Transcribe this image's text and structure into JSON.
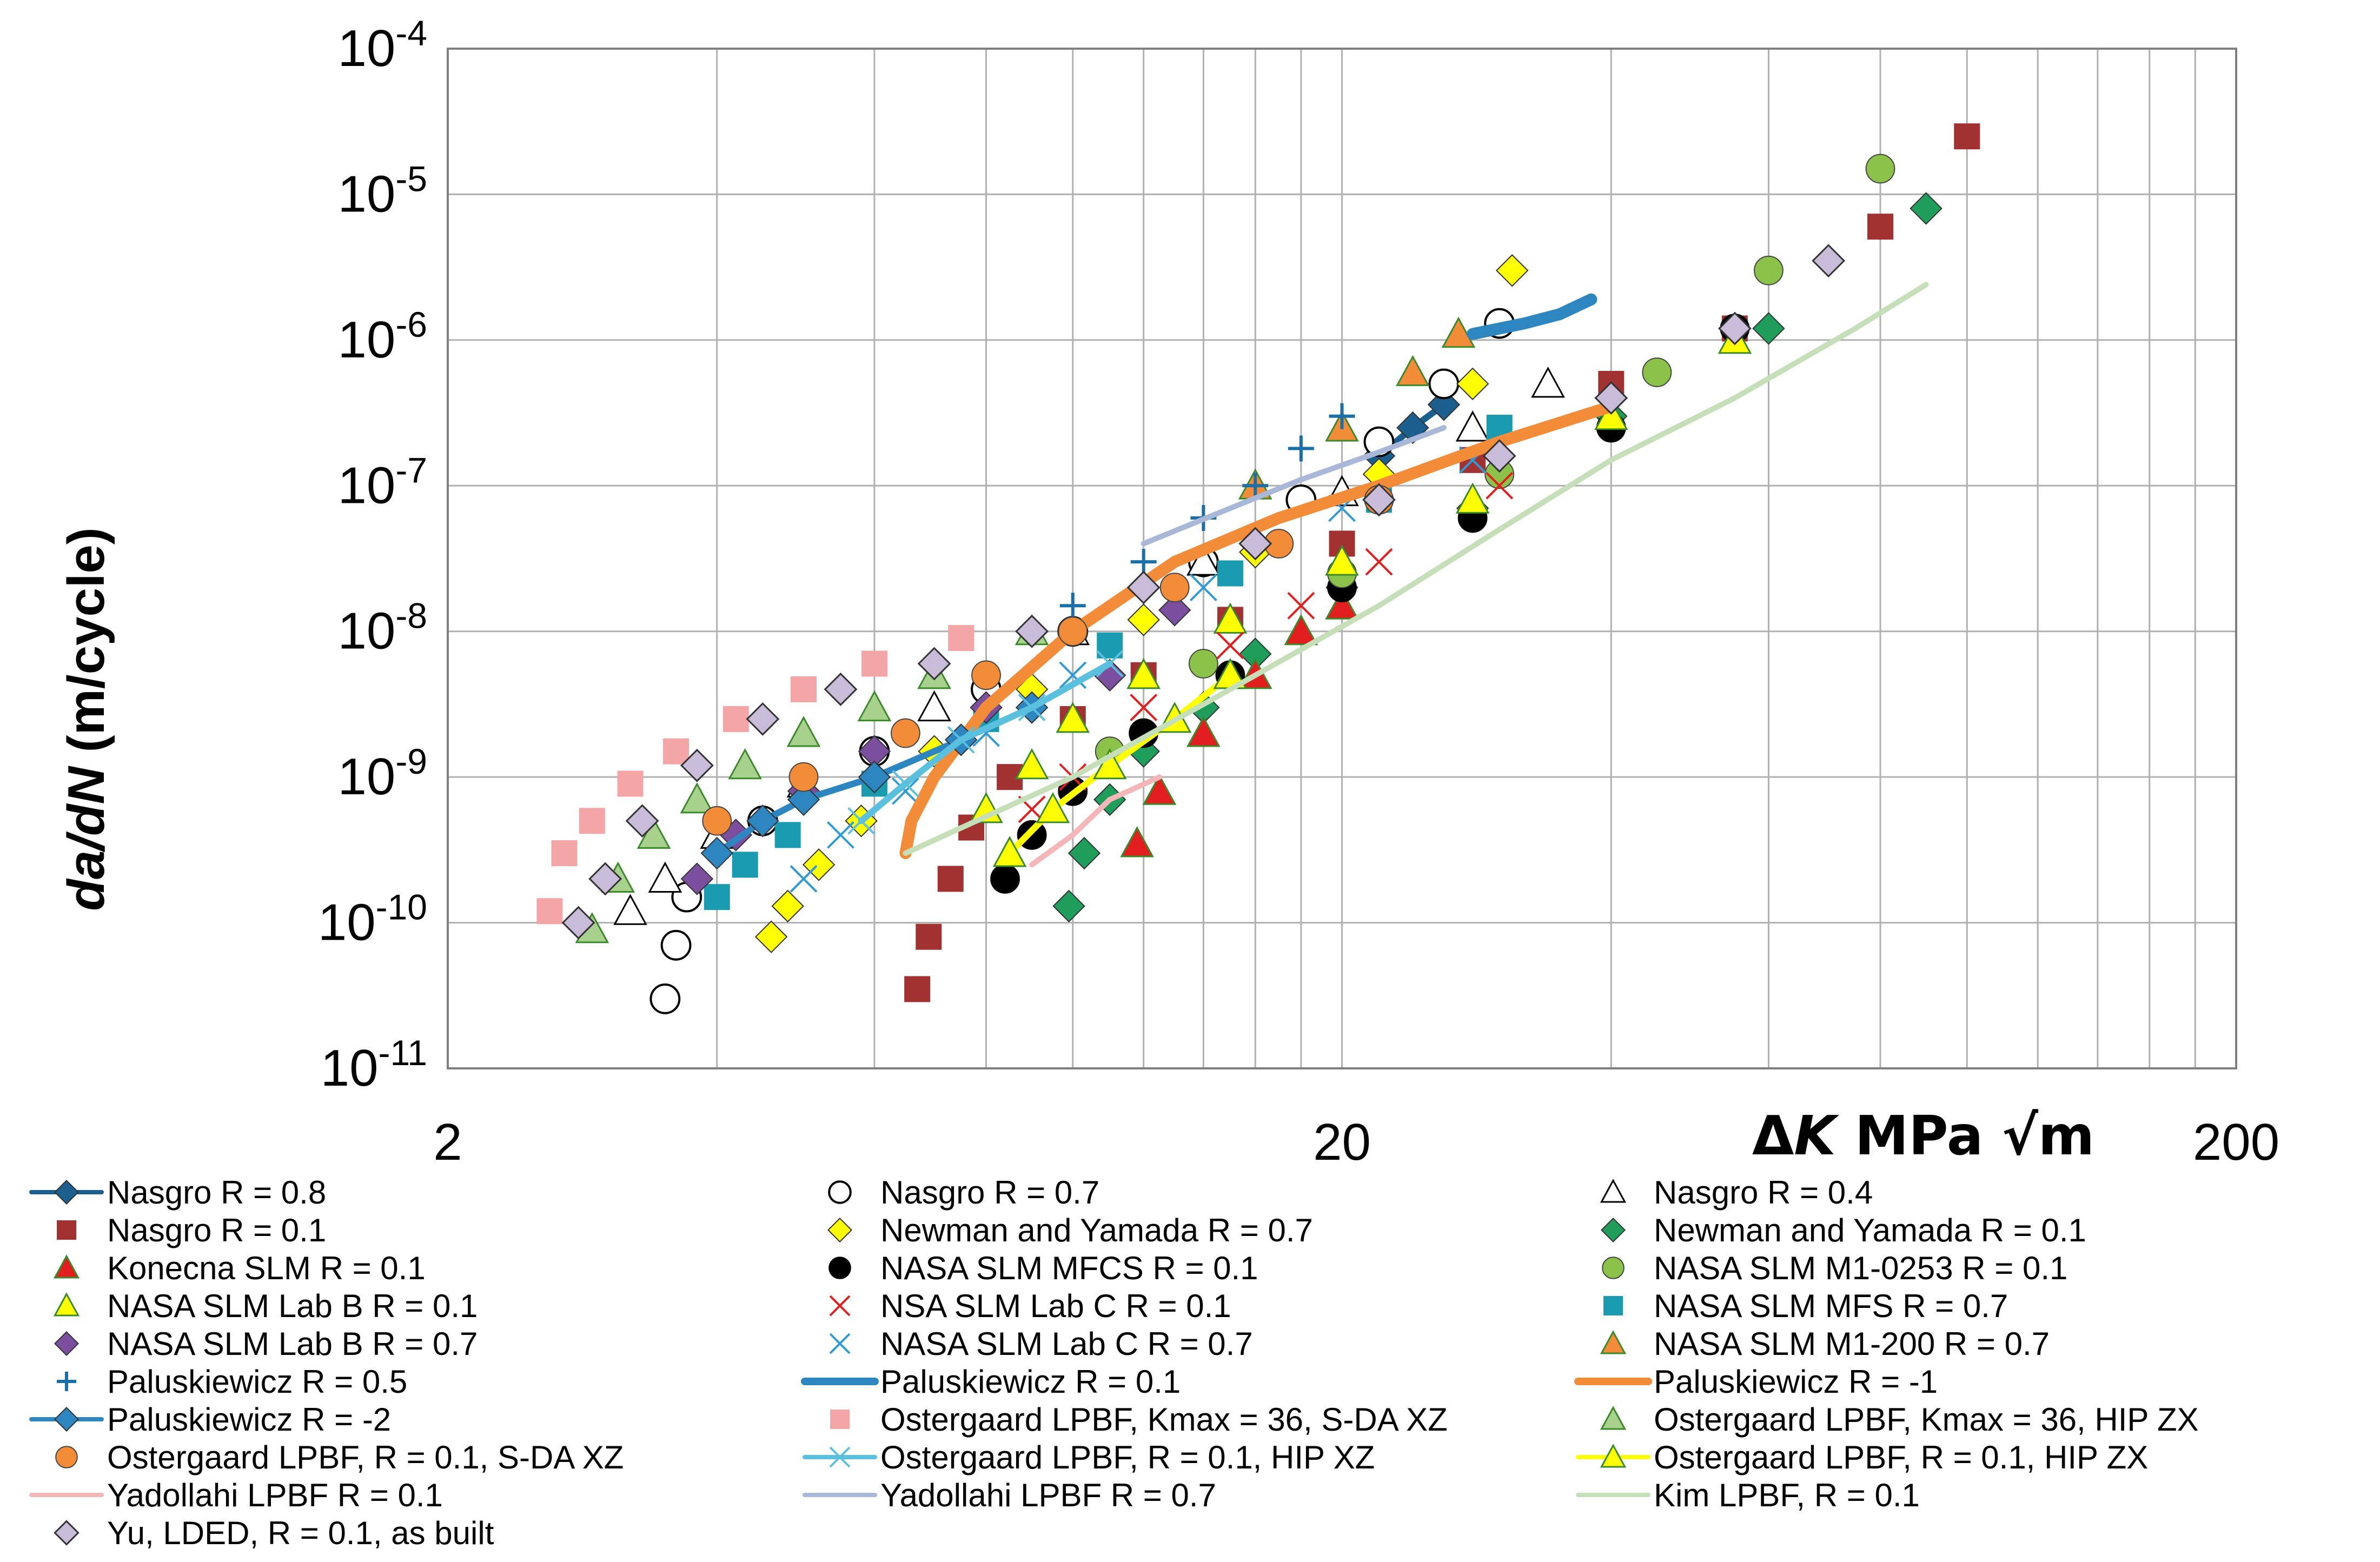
{
  "chart_data": {
    "type": "scatter",
    "title": "",
    "xlabel": "ΔK MPa √m",
    "ylabel": "da/dN (m/cycle)",
    "xscale": "log",
    "yscale": "log",
    "xlim": [
      2,
      200
    ],
    "ylim": [
      1e-11,
      0.0001
    ],
    "x_ticks": [
      "2",
      "20",
      "200"
    ],
    "y_ticks": [
      {
        "base": "10",
        "exp": "-11"
      },
      {
        "base": "10",
        "exp": "-10"
      },
      {
        "base": "10",
        "exp": "-9"
      },
      {
        "base": "10",
        "exp": "-8"
      },
      {
        "base": "10",
        "exp": "-7"
      },
      {
        "base": "10",
        "exp": "-6"
      },
      {
        "base": "10",
        "exp": "-5"
      },
      {
        "base": "10",
        "exp": "-4"
      }
    ],
    "grid": true,
    "legend_position": "bottom",
    "series": [
      {
        "name": "Nasgro R = 0.8",
        "marker": "diamond-line",
        "color": "#1a5f8e",
        "x": [
          22,
          24,
          26
        ],
        "y": [
          1.6e-07,
          2.5e-07,
          3.6e-07
        ]
      },
      {
        "name": "Nasgro R = 0.7",
        "marker": "circle-open",
        "color": "#000000",
        "x": [
          3.5,
          3.6,
          3.7,
          4.5,
          6,
          8,
          10,
          14,
          18,
          22,
          26,
          30
        ],
        "y": [
          3e-11,
          7e-11,
          1.5e-10,
          5e-10,
          1.5e-09,
          4e-09,
          1e-08,
          3e-08,
          8e-08,
          2e-07,
          5e-07,
          1.3e-06
        ]
      },
      {
        "name": "Nasgro R = 0.4",
        "marker": "triangle-open",
        "color": "#000000",
        "x": [
          3.2,
          3.5,
          4,
          5,
          7,
          10,
          14,
          20,
          28,
          34
        ],
        "y": [
          1.2e-10,
          2e-10,
          4e-10,
          9e-10,
          3e-09,
          1e-08,
          3e-08,
          9e-08,
          2.5e-07,
          5e-07
        ]
      },
      {
        "name": "Nasgro R = 0.1",
        "marker": "square",
        "color": "#a23232",
        "x": [
          6.7,
          6.9,
          7.3,
          7.7,
          8.5,
          10,
          12,
          15,
          20,
          28,
          40,
          55,
          80,
          100
        ],
        "y": [
          3.5e-11,
          8e-11,
          2e-10,
          4.5e-10,
          1e-09,
          2.5e-09,
          5e-09,
          1.2e-08,
          4e-08,
          1.5e-07,
          5e-07,
          1.2e-06,
          6e-06,
          2.5e-05
        ]
      },
      {
        "name": "Newman and Yamada R = 0.7",
        "marker": "diamond",
        "color": "#ffff00",
        "x": [
          4.6,
          4.8,
          5.2,
          5.8,
          7,
          9,
          12,
          16,
          22,
          28,
          31
        ],
        "y": [
          8e-11,
          1.3e-10,
          2.5e-10,
          5e-10,
          1.5e-09,
          4e-09,
          1.2e-08,
          3.5e-08,
          1.2e-07,
          5e-07,
          3e-06
        ]
      },
      {
        "name": "Newman and Yamada R = 0.1",
        "marker": "diamond",
        "color": "#1e9e5a",
        "x": [
          9.9,
          10.3,
          11,
          12,
          14,
          16,
          20,
          28,
          40,
          60,
          90
        ],
        "y": [
          1.3e-10,
          3e-10,
          7e-10,
          1.5e-09,
          3e-09,
          7e-09,
          2e-08,
          7e-08,
          3e-07,
          1.2e-06,
          8e-06
        ]
      },
      {
        "name": "Konecna SLM R = 0.1",
        "marker": "triangle",
        "color": "#e31e1e",
        "x": [
          11.8,
          12.5,
          14,
          16,
          18,
          20
        ],
        "y": [
          3.5e-10,
          8e-10,
          2e-09,
          5e-09,
          1e-08,
          1.5e-08
        ]
      },
      {
        "name": "NASA SLM MFCS R = 0.1",
        "marker": "circle",
        "color": "#000000",
        "x": [
          8.4,
          9,
          10,
          12,
          15,
          20,
          28,
          40,
          55
        ],
        "y": [
          2e-10,
          4e-10,
          8e-10,
          2e-09,
          5e-09,
          2e-08,
          6e-08,
          2.5e-07,
          1.2e-06
        ]
      },
      {
        "name": "NASA SLM M1-0253 R = 0.1",
        "marker": "circle",
        "color": "#8bc34a",
        "x": [
          11,
          14,
          20,
          30,
          45,
          60,
          80
        ],
        "y": [
          1.5e-09,
          6e-09,
          2.5e-08,
          1.2e-07,
          6e-07,
          3e-06,
          1.5e-05
        ]
      },
      {
        "name": "NASA SLM Lab B R = 0.1",
        "marker": "triangle",
        "color": "#ffff00",
        "x": [
          8,
          9,
          10,
          12,
          15,
          20,
          28,
          40,
          55
        ],
        "y": [
          6e-10,
          1.2e-09,
          2.5e-09,
          5e-09,
          1.2e-08,
          3e-08,
          8e-08,
          3e-07,
          1e-06
        ]
      },
      {
        "name": "NSA SLM Lab C R = 0.1",
        "marker": "x",
        "color": "#e31e1e",
        "x": [
          9,
          10,
          12,
          15,
          18,
          22,
          30
        ],
        "y": [
          6e-10,
          1e-09,
          3e-09,
          8e-09,
          1.5e-08,
          3e-08,
          1e-07
        ]
      },
      {
        "name": "NASA SLM MFS R = 0.7",
        "marker": "square",
        "color": "#1a9bb0",
        "x": [
          4,
          4.3,
          4.8,
          6,
          8,
          11,
          15,
          22,
          30
        ],
        "y": [
          1.5e-10,
          2.5e-10,
          4e-10,
          9e-10,
          2.5e-09,
          8e-09,
          2.5e-08,
          8e-08,
          2.5e-07
        ]
      },
      {
        "name": "NASA SLM Lab B R = 0.7",
        "marker": "diamond",
        "color": "#7b4f9e",
        "x": [
          3.8,
          4.2,
          5,
          6,
          8,
          11,
          13
        ],
        "y": [
          2e-10,
          4e-10,
          8e-10,
          1.5e-09,
          3e-09,
          5e-09,
          1.4e-08
        ]
      },
      {
        "name": "NASA SLM Lab C R = 0.7",
        "marker": "x",
        "color": "#2e9bd6",
        "x": [
          5,
          5.5,
          6.5,
          8,
          10,
          14,
          20,
          28
        ],
        "y": [
          2e-10,
          4e-10,
          8e-10,
          2e-09,
          5e-09,
          2e-08,
          7e-08,
          1.5e-07
        ]
      },
      {
        "name": "NASA SLM M1-200 R = 0.7",
        "marker": "triangle",
        "color": "#f28c38",
        "x": [
          16,
          20,
          24,
          27
        ],
        "y": [
          1e-07,
          2.5e-07,
          6e-07,
          1.1e-06
        ]
      },
      {
        "name": "Paluskiewicz R = 0.5",
        "marker": "plus",
        "color": "#1a6fa8",
        "x": [
          10,
          12,
          14,
          16,
          18,
          20
        ],
        "y": [
          1.5e-08,
          3e-08,
          6e-08,
          1e-07,
          1.8e-07,
          3e-07
        ]
      },
      {
        "name": "Paluskiewicz R = 0.1",
        "marker": "thick-line",
        "color": "#2e86c1",
        "x": [
          28,
          32,
          35,
          38
        ],
        "y": [
          1.1e-06,
          1.3e-06,
          1.5e-06,
          1.9e-06
        ]
      },
      {
        "name": "Paluskiewicz R = -1",
        "marker": "thick-line",
        "color": "#f28c38",
        "x": [
          6.5,
          6.6,
          7,
          8,
          10,
          13,
          17,
          22,
          30,
          40
        ],
        "y": [
          3e-10,
          5e-10,
          1e-09,
          3e-09,
          1e-08,
          3e-08,
          6e-08,
          1e-07,
          2e-07,
          3.5e-07
        ]
      },
      {
        "name": "Paluskiewicz R = -2",
        "marker": "diamond-line",
        "color": "#2e86c1",
        "x": [
          4,
          4.5,
          5,
          6,
          7.5,
          9
        ],
        "y": [
          3e-10,
          5e-10,
          7e-10,
          1e-09,
          1.8e-09,
          3e-09
        ]
      },
      {
        "name": "Ostergaard LPBF, Kmax = 36, S-DA XZ",
        "marker": "square",
        "color": "#f4a6a6",
        "x": [
          2.6,
          2.7,
          2.9,
          3.2,
          3.6,
          4.2,
          5,
          6,
          7.5
        ],
        "y": [
          1.2e-10,
          3e-10,
          5e-10,
          9e-10,
          1.5e-09,
          2.5e-09,
          4e-09,
          6e-09,
          9e-09
        ]
      },
      {
        "name": "Ostergaard LPBF, Kmax = 36, HIP ZX",
        "marker": "triangle",
        "color": "#a9d18e",
        "x": [
          2.9,
          3.1,
          3.4,
          3.8,
          4.3,
          5,
          6,
          7,
          9
        ],
        "y": [
          9e-11,
          2e-10,
          4e-10,
          7e-10,
          1.2e-09,
          2e-09,
          3e-09,
          5e-09,
          1e-08
        ]
      },
      {
        "name": "Ostergaard LPBF, R = 0.1, S-DA XZ",
        "marker": "circle",
        "color": "#f28c38",
        "x": [
          4,
          5,
          6.5,
          8,
          10,
          13,
          17,
          22
        ],
        "y": [
          5e-10,
          1e-09,
          2e-09,
          5e-09,
          1e-08,
          2e-08,
          4e-08,
          8e-08
        ]
      },
      {
        "name": "Ostergaard LPBF, R = 0.1, HIP XZ",
        "marker": "asterisk-line",
        "color": "#5bc0de",
        "x": [
          5.8,
          6.5,
          7.5,
          9,
          11
        ],
        "y": [
          5e-10,
          9e-10,
          1.8e-09,
          3e-09,
          6e-09
        ]
      },
      {
        "name": "Ostergaard LPBF, R = 0.1, HIP ZX",
        "marker": "triangle-line",
        "color": "#ffff00",
        "x": [
          8.5,
          9.5,
          11,
          13,
          15
        ],
        "y": [
          3e-10,
          6e-10,
          1.2e-09,
          2.5e-09,
          5e-09
        ]
      },
      {
        "name": "Yadollahi LPBF R = 0.1",
        "marker": "line",
        "color": "#f4b6b6",
        "x": [
          9,
          10,
          11,
          12.5
        ],
        "y": [
          2.5e-10,
          4e-10,
          7e-10,
          1e-09
        ]
      },
      {
        "name": "Yadollahi LPBF R = 0.7",
        "marker": "line",
        "color": "#aab8d8",
        "x": [
          12,
          15,
          18,
          22,
          26
        ],
        "y": [
          4e-08,
          7e-08,
          1.1e-07,
          1.7e-07,
          2.5e-07
        ]
      },
      {
        "name": "Kim LPBF, R = 0.1",
        "marker": "line",
        "color": "#c5dfb8",
        "x": [
          6.5,
          10,
          15,
          22,
          30,
          40,
          55,
          75,
          90
        ],
        "y": [
          3e-10,
          1e-09,
          4e-09,
          1.5e-08,
          5e-08,
          1.5e-07,
          4e-07,
          1.2e-06,
          2.4e-06
        ]
      },
      {
        "name": "Yu, LDED, R = 0.1, as built",
        "marker": "diamond-open",
        "color": "#c8bcd8",
        "x": [
          2.8,
          3,
          3.3,
          3.8,
          4.5,
          5.5,
          7,
          9,
          12,
          16,
          22,
          30,
          40,
          55,
          70
        ],
        "y": [
          1e-10,
          2e-10,
          5e-10,
          1.2e-09,
          2.5e-09,
          4e-09,
          6e-09,
          1e-08,
          2e-08,
          4e-08,
          8e-08,
          1.6e-07,
          4e-07,
          1.2e-06,
          3.5e-06
        ]
      }
    ]
  },
  "legend_columns": [
    [
      "Nasgro R = 0.8",
      "Nasgro R = 0.1",
      "Konecna SLM R = 0.1",
      "NASA SLM Lab B R = 0.1",
      "NASA SLM Lab B R = 0.7",
      "Paluskiewicz R = 0.5",
      "Paluskiewicz R = -2",
      "Ostergaard LPBF, R = 0.1, S-DA XZ",
      "Yadollahi LPBF R = 0.1",
      "Yu, LDED, R = 0.1, as built"
    ],
    [
      "Nasgro R = 0.7",
      "Newman and Yamada R = 0.7",
      "NASA SLM MFCS R = 0.1",
      "NSA SLM Lab C R = 0.1",
      "NASA SLM Lab C R = 0.7",
      "Paluskiewicz R = 0.1",
      "Ostergaard LPBF, Kmax = 36, S-DA XZ",
      "Ostergaard LPBF, R = 0.1, HIP XZ",
      "Yadollahi LPBF R = 0.7"
    ],
    [
      "Nasgro R = 0.4",
      "Newman and Yamada R = 0.1",
      "NASA SLM M1-0253 R = 0.1",
      "NASA SLM MFS R = 0.7",
      "NASA SLM M1-200 R = 0.7",
      "Paluskiewicz R = -1",
      "Ostergaard LPBF, Kmax = 36, HIP ZX",
      "Ostergaard LPBF, R = 0.1, HIP ZX",
      "Kim LPBF, R = 0.1"
    ]
  ]
}
